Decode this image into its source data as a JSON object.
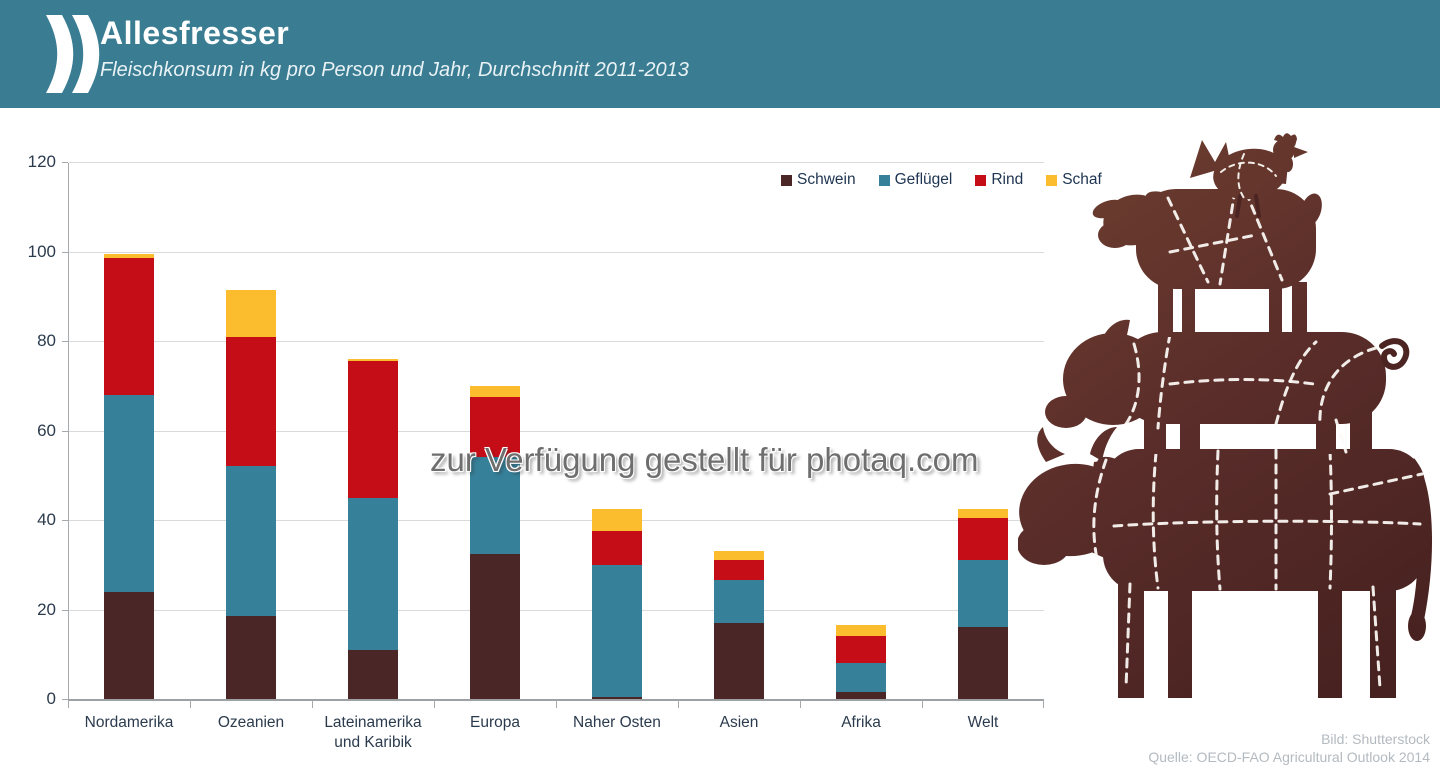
{
  "header": {
    "title": "Allesfresser",
    "subtitle": "Fleischkonsum in kg pro Person und Jahr, Durchschnitt 2011-2013",
    "background_color": "#3a7d93",
    "logo": "double-chevron-icon"
  },
  "watermark": "zur Verfügung gestellt für photaq.com",
  "footer": {
    "image_credit": "Bild: Shutterstock",
    "source": "Quelle: OECD-FAO Agricultural Outlook 2014"
  },
  "illustration": {
    "description": "Stacked butcher-cut silhouettes: chicken on sheep on pig on cow",
    "animals": [
      "Huhn",
      "Schaf",
      "Schwein",
      "Rind"
    ],
    "color": "#53292a"
  },
  "chart_data": {
    "type": "bar",
    "stacked": true,
    "title": "Fleischkonsum in kg pro Person und Jahr, Durchschnitt 2011-2013",
    "xlabel": "",
    "ylabel": "kg pro Person und Jahr",
    "categories": [
      "Nordamerika",
      "Ozeanien",
      "Lateinamerika\nund Karibik",
      "Europa",
      "Naher Osten",
      "Asien",
      "Afrika",
      "Welt"
    ],
    "series": [
      {
        "name": "Schwein",
        "color": "#4a2627",
        "values": [
          24,
          18.5,
          11,
          32.5,
          0.5,
          17,
          1.5,
          16
        ]
      },
      {
        "name": "Geflügel",
        "color": "#36809a",
        "values": [
          44,
          33.5,
          34,
          21.5,
          29.5,
          9.5,
          6.5,
          15
        ]
      },
      {
        "name": "Rind",
        "color": "#c40d17",
        "values": [
          30.5,
          29,
          30.5,
          13.5,
          7.5,
          4.5,
          6,
          9.5
        ]
      },
      {
        "name": "Schaf",
        "color": "#fbbc2e",
        "values": [
          1,
          10.5,
          0.5,
          2.5,
          5,
          2,
          2.5,
          2
        ]
      }
    ],
    "totals": [
      99.5,
      91.5,
      76,
      70,
      42.5,
      33,
      16.5,
      42.5
    ],
    "ylim": [
      0,
      120
    ],
    "yticks": [
      0,
      20,
      40,
      60,
      80,
      100,
      120
    ],
    "grid": true,
    "legend_position": "top-right"
  }
}
